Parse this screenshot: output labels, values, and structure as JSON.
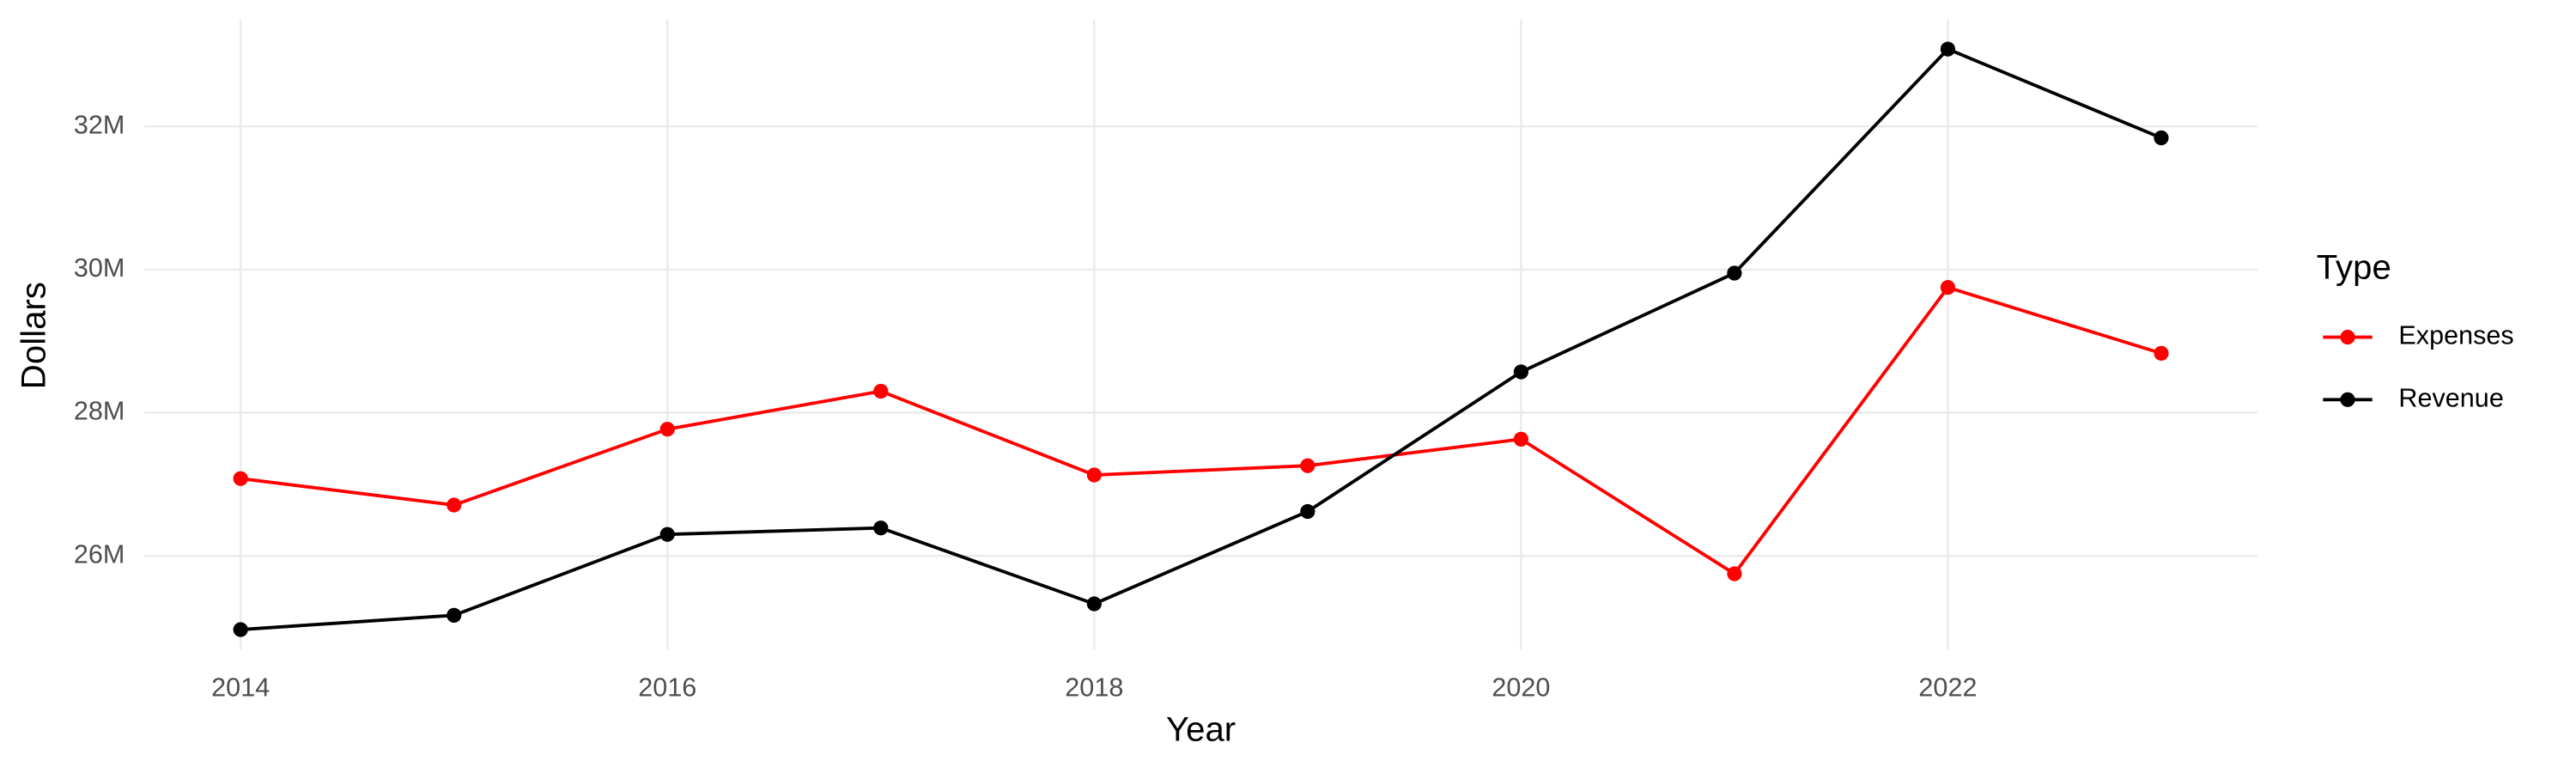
{
  "chart_data": {
    "type": "line",
    "x_label": "Year",
    "y_label": "Dollars",
    "x": [
      2014,
      2015,
      2016,
      2017,
      2018,
      2019,
      2020,
      2021,
      2022,
      2023
    ],
    "series": [
      {
        "name": "Expenses",
        "color": "#ff0000",
        "values": [
          27080000,
          26710000,
          27770000,
          28300000,
          27130000,
          27260000,
          27630000,
          25750000,
          29750000,
          28830000
        ]
      },
      {
        "name": "Revenue",
        "color": "#000000",
        "values": [
          24970000,
          25170000,
          26300000,
          26390000,
          25330000,
          26620000,
          28570000,
          29950000,
          33080000,
          31840000
        ]
      }
    ],
    "legend_title": "Type",
    "legend_position": "right",
    "xlim": [
      2013.55,
      2023.45
    ],
    "xticks": [
      2014,
      2016,
      2018,
      2020,
      2022
    ],
    "ylim": [
      24690000,
      33490000
    ],
    "yticks": [
      {
        "value": 26000000,
        "label": "26M"
      },
      {
        "value": 28000000,
        "label": "28M"
      },
      {
        "value": 30000000,
        "label": "30M"
      },
      {
        "value": 32000000,
        "label": "32M"
      }
    ],
    "grid": true
  }
}
